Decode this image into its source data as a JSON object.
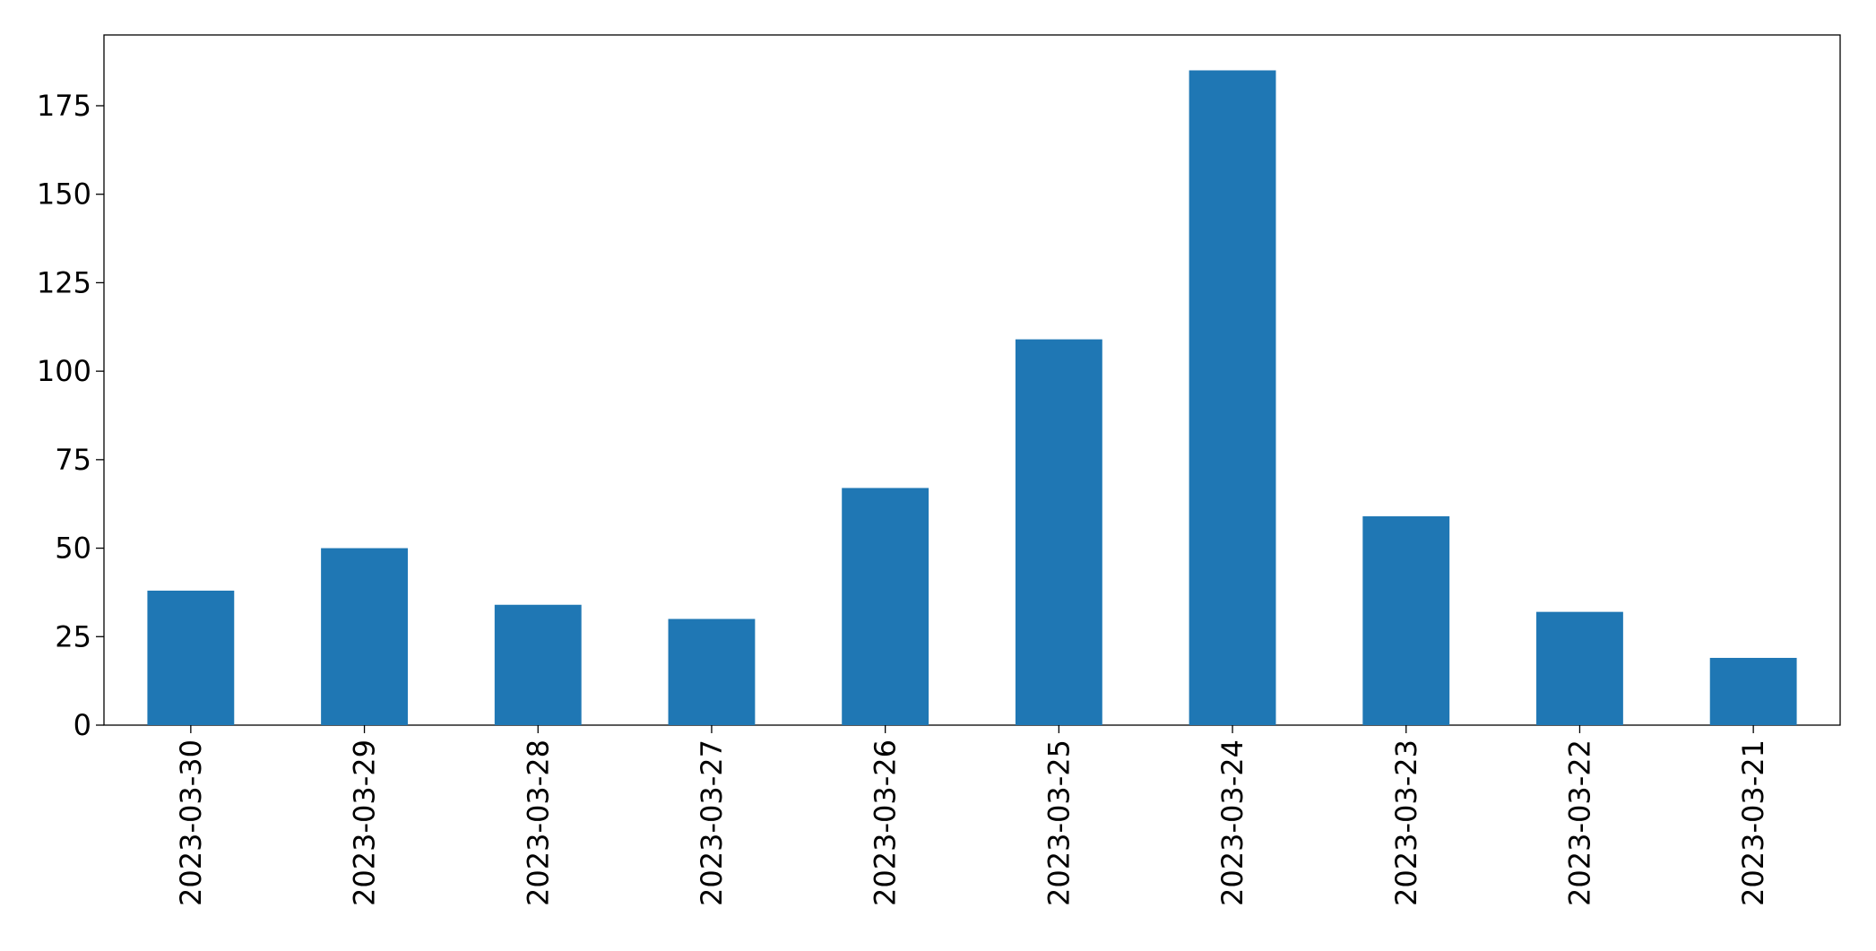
{
  "chart_data": {
    "type": "bar",
    "categories": [
      "2023-03-30",
      "2023-03-29",
      "2023-03-28",
      "2023-03-27",
      "2023-03-26",
      "2023-03-25",
      "2023-03-24",
      "2023-03-23",
      "2023-03-22",
      "2023-03-21"
    ],
    "values": [
      38,
      50,
      34,
      30,
      67,
      109,
      185,
      59,
      32,
      19
    ],
    "color": "#1f77b4",
    "ylim": [
      0,
      195
    ],
    "yticks": [
      0,
      25,
      50,
      75,
      100,
      125,
      150,
      175
    ],
    "grid": false
  }
}
